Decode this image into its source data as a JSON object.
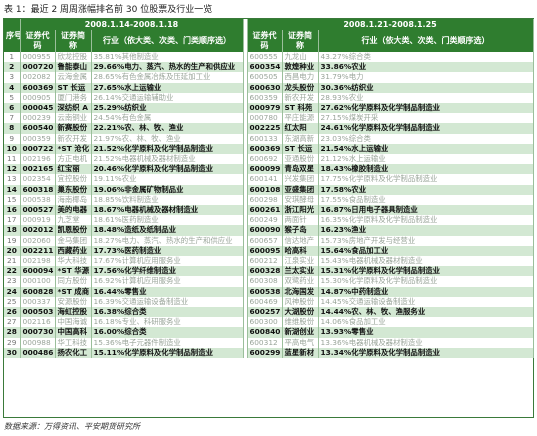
{
  "caption": "表 1：最近 2 周周涨幅排名前 30 位股票及行业一览",
  "period_left": "2008.1.14-2008.1.18",
  "period_right": "2008.1.21-2008.1.25",
  "headers": {
    "seq": "序号",
    "code": "证券代码",
    "name": "证券简称",
    "industry": "行业（依大类、次类、门类顺序选）"
  },
  "rows": [
    {
      "n": "1",
      "lc": "000955",
      "ln": "欣龙控股",
      "li": "35.81%其他制造业",
      "rc": "600555",
      "rn": "九龙山",
      "ri": "43.27%综合类",
      "s": "dim"
    },
    {
      "n": "2",
      "lc": "000720",
      "ln": "鲁能泰山",
      "li": "29.66%电力、蒸汽、热水的生产和供应业",
      "rc": "600354",
      "rn": "敦煌种业",
      "ri": "33.86%农业",
      "s": "bold"
    },
    {
      "n": "3",
      "lc": "002082",
      "ln": "云海金属",
      "li": "28.65%有色金属冶炼及压延加工业",
      "rc": "600505",
      "rn": "西昌电力",
      "ri": "31.79%电力",
      "s": "dim"
    },
    {
      "n": "4",
      "lc": "600369",
      "ln": "ST 长运",
      "li": "27.65%水上运输业",
      "rc": "600630",
      "rn": "龙头股份",
      "ri": "30.36%纺织业",
      "s": "bold"
    },
    {
      "n": "5",
      "lc": "000905",
      "ln": "厦门港务",
      "li": "26.14%交通运输辅助业",
      "rc": "600359",
      "rn": "新农开发",
      "ri": "28.93%农业",
      "s": "dim"
    },
    {
      "n": "6",
      "lc": "000045",
      "ln": "深纺织 A",
      "li": "25.29%纺织业",
      "rc": "000979",
      "rn": "ST 科苑",
      "ri": "27.62%化学原料及化学制品制造业",
      "s": "bold"
    },
    {
      "n": "7",
      "lc": "000239",
      "ln": "云南铜业",
      "li": "24.54%有色金属",
      "rc": "000780",
      "rn": "平庄能源",
      "ri": "27.15%煤炭开采",
      "s": "dim"
    },
    {
      "n": "8",
      "lc": "600540",
      "ln": "新赛股份",
      "li": "22.21%农、林、牧、渔业",
      "rc": "002225",
      "rn": "红太阳",
      "ri": "24.61%化学原料及化学制品制造业",
      "s": "bold"
    },
    {
      "n": "9",
      "lc": "000359",
      "ln": "新农开发",
      "li": "21.97%农、林、牧、渔业",
      "rc": "600133",
      "rn": "东湖高新",
      "ri": "23.03%综合类",
      "s": "dim"
    },
    {
      "n": "10",
      "lc": "000722",
      "ln": "*ST 沧化",
      "li": "21.52%化学原料及化学制品制造业",
      "rc": "600369",
      "rn": "ST 长运",
      "ri": "21.54%水上运输业",
      "s": "bold"
    },
    {
      "n": "11",
      "lc": "002196",
      "ln": "方正电机",
      "li": "21.52%电器机械及器材制造业",
      "rc": "600692",
      "rn": "亚通股份",
      "ri": "21.12%水上运输业",
      "s": "dim"
    },
    {
      "n": "12",
      "lc": "002165",
      "ln": "红宝丽",
      "li": "20.46%化学原料及化学制品制造业",
      "rc": "600099",
      "rn": "青岛双星",
      "ri": "18.43%橡胶制造业",
      "s": "bold"
    },
    {
      "n": "13",
      "lc": "002354",
      "ln": "宜控股份",
      "li": "19.11%农业",
      "rc": "600141",
      "rn": "兴发集团",
      "ri": "17.75%化学原料及化学制品制造业",
      "s": "dim"
    },
    {
      "n": "14",
      "lc": "600318",
      "ln": "巢东股份",
      "li": "19.06%非金属矿物制品业",
      "rc": "600108",
      "rn": "亚盛集团",
      "ri": "17.58%农业",
      "s": "bold"
    },
    {
      "n": "15",
      "lc": "000538",
      "ln": "海南椰岛",
      "li": "18.85%饮料制造业",
      "rc": "600298",
      "rn": "安琪酵母",
      "ri": "17.55%食品制造业",
      "s": "dim"
    },
    {
      "n": "16",
      "lc": "000527",
      "ln": "美的电器",
      "li": "18.67%电器机械及器材制造业",
      "rc": "600261",
      "rn": "浙江阳光",
      "ri": "16.87%日用电子器具制造业",
      "s": "bold"
    },
    {
      "n": "17",
      "lc": "000919",
      "ln": "九芝堂",
      "li": "18.61%医药制造业",
      "rc": "600249",
      "rn": "两面针",
      "ri": "16.35%化学原料及化学制品制造业",
      "s": "dim"
    },
    {
      "n": "18",
      "lc": "002012",
      "ln": "凯恩股份",
      "li": "18.48%造纸及纸制品业",
      "rc": "600090",
      "rn": "猴子岛",
      "ri": "16.23%渔业",
      "s": "bold"
    },
    {
      "n": "19",
      "lc": "002060",
      "ln": "金马集团",
      "li": "18.27%电力、蒸汽、热水的生产和供应业",
      "rc": "600657",
      "rn": "信达地产",
      "ri": "15.73%房地产开发与经营业",
      "s": "dim"
    },
    {
      "n": "20",
      "lc": "002211",
      "ln": "西藏药业",
      "li": "17.73%医药制造业",
      "rc": "600095",
      "rn": "哈高科",
      "ri": "15.64%食品加工业",
      "s": "bold"
    },
    {
      "n": "21",
      "lc": "002198",
      "ln": "华大科技",
      "li": "17.67%计算机应用服务业",
      "rc": "600212",
      "rn": "江泉实业",
      "ri": "15.43%电器机械及器材制造业",
      "s": "dim"
    },
    {
      "n": "22",
      "lc": "600094",
      "ln": "*ST 华源",
      "li": "17.56%化学纤维制造业",
      "rc": "600328",
      "rn": "兰太实业",
      "ri": "15.31%化学原料及化学制品制造业",
      "s": "bold"
    },
    {
      "n": "23",
      "lc": "000100",
      "ln": "同方股份",
      "li": "16.92%计算机应用服务业",
      "rc": "600308",
      "rn": "双鹭药业",
      "ri": "15.30%化学原料及化学制品制造业",
      "s": "dim"
    },
    {
      "n": "24",
      "lc": "600828",
      "ln": "*ST 成商",
      "li": "16.44%零售业",
      "rc": "600538",
      "rn": "北海国发",
      "ri": "14.87%中药制造业",
      "s": "bold"
    },
    {
      "n": "25",
      "lc": "000337",
      "ln": "安源股份",
      "li": "16.39%交通运输设备制造业",
      "rc": "600469",
      "rn": "风神股份",
      "ri": "14.45%交通运输设备制造业",
      "s": "dim"
    },
    {
      "n": "26",
      "lc": "000503",
      "ln": "海虹控股",
      "li": "16.38%综合类",
      "rc": "600257",
      "rn": "大湖股份",
      "ri": "14.44%农、林、牧、渔服务业",
      "s": "bold"
    },
    {
      "n": "27",
      "lc": "002116",
      "ln": "中国海诚",
      "li": "16.18%专业、科研服务业",
      "rc": "600300",
      "rn": "维维股份",
      "ri": "14.06%食品加工业",
      "s": "dim"
    },
    {
      "n": "28",
      "lc": "000730",
      "ln": "中国高科",
      "li": "16.00%综合类",
      "rc": "600840",
      "rn": "新湖创业",
      "ri": "13.93%零售业",
      "s": "bold"
    },
    {
      "n": "29",
      "lc": "000988",
      "ln": "华工科技",
      "li": "15.36%电子元器件制造业",
      "rc": "600312",
      "rn": "平高电气",
      "ri": "13.36%电器机械及器材制造业",
      "s": "dim"
    },
    {
      "n": "30",
      "lc": "000486",
      "ln": "扬农化工",
      "li": "15.11%化学原料及化学制品制造业",
      "rc": "600299",
      "rn": "蓝星新材",
      "ri": "13.34%化学原料及化学制品制造业",
      "s": "bold"
    }
  ],
  "footer": "数据来源：万得资讯、平安期货研究所"
}
